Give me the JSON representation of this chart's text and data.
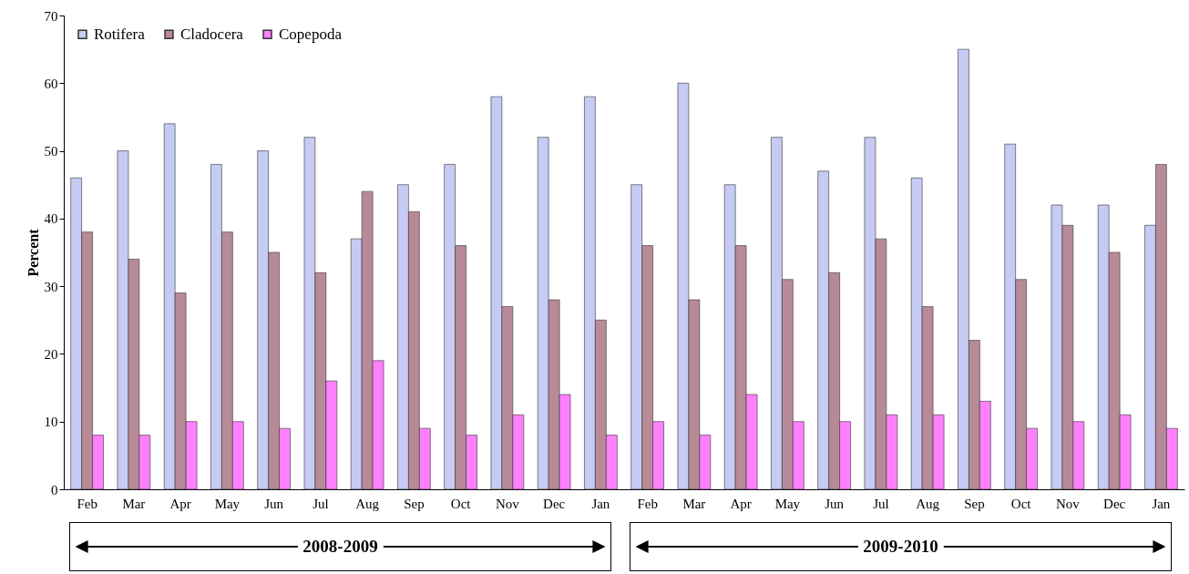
{
  "chart_data": {
    "type": "bar",
    "ylabel": "Percent",
    "categories": [
      "Feb",
      "Mar",
      "Apr",
      "May",
      "Jun",
      "Jul",
      "Aug",
      "Sep",
      "Oct",
      "Nov",
      "Dec",
      "Jan",
      "Feb",
      "Mar",
      "Apr",
      "May",
      "Jun",
      "Jul",
      "Aug",
      "Sep",
      "Oct",
      "Nov",
      "Dec",
      "Jan"
    ],
    "series": [
      {
        "name": "Rotifera",
        "color": "#c6cbf5",
        "values": [
          46,
          50,
          54,
          48,
          50,
          52,
          37,
          45,
          48,
          58,
          52,
          58,
          45,
          60,
          45,
          52,
          47,
          52,
          46,
          65,
          51,
          42,
          42,
          39
        ]
      },
      {
        "name": "Cladocera",
        "color": "#b88a98",
        "values": [
          38,
          34,
          29,
          38,
          35,
          32,
          44,
          41,
          36,
          27,
          28,
          25,
          36,
          28,
          36,
          31,
          32,
          37,
          27,
          22,
          31,
          39,
          35,
          48
        ]
      },
      {
        "name": "Copepoda",
        "color": "#ff80ff",
        "values": [
          8,
          8,
          10,
          10,
          9,
          16,
          19,
          9,
          8,
          11,
          14,
          8,
          10,
          8,
          14,
          10,
          10,
          11,
          11,
          13,
          9,
          10,
          11,
          9
        ]
      }
    ],
    "ylim": [
      0,
      70
    ],
    "yticks": [
      0,
      10,
      20,
      30,
      40,
      50,
      60,
      70
    ],
    "grid": false,
    "legend": "top left",
    "annotations": [
      "2008-2009",
      "2009-2010"
    ]
  }
}
